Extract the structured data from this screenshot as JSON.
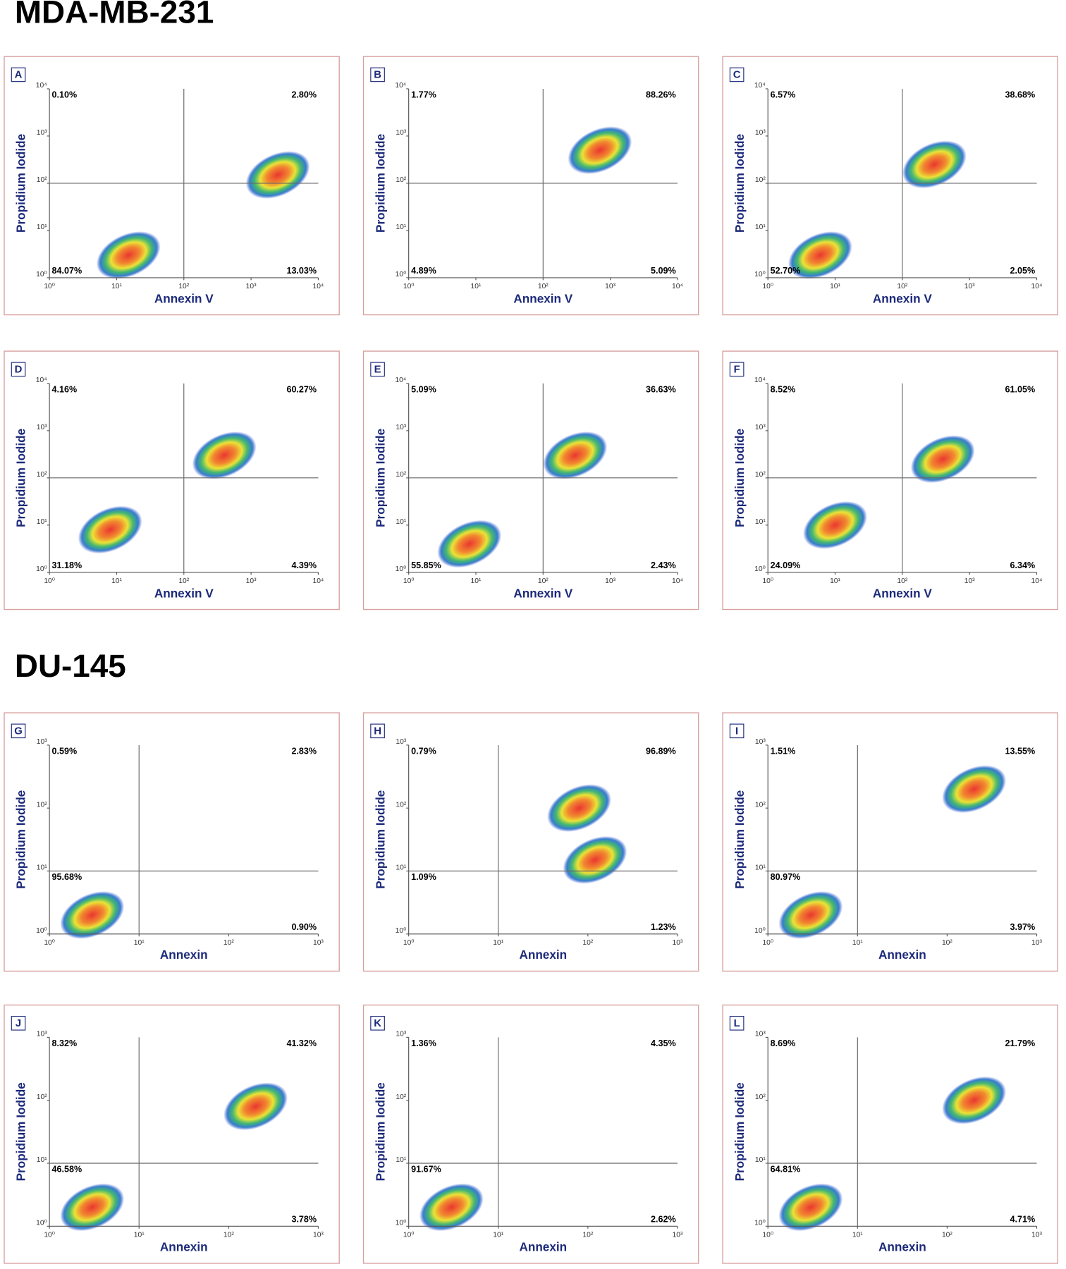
{
  "sections": [
    {
      "title": "MDA-MB-231"
    },
    {
      "title": "DU-145"
    }
  ],
  "chart_data": [
    {
      "type": "scatter",
      "title": "A",
      "xlabel": "Annexin V",
      "ylabel": "Propidium Iodide",
      "log": true,
      "xlim": [
        1,
        10000
      ],
      "ylim": [
        1,
        10000
      ],
      "xticks": [
        {
          "value": 1,
          "label": "10⁰"
        },
        {
          "value": 10,
          "label": "10¹"
        },
        {
          "value": 100,
          "label": "10²"
        },
        {
          "value": 1000,
          "label": "10³"
        },
        {
          "value": 10000,
          "label": "10⁴"
        }
      ],
      "yticks": [
        {
          "value": 1,
          "label": "10⁰"
        },
        {
          "value": 10,
          "label": "10¹"
        },
        {
          "value": 100,
          "label": "10²"
        },
        {
          "value": 1000,
          "label": "10³"
        },
        {
          "value": 10000,
          "label": "10⁴"
        }
      ],
      "xgate": 100,
      "ygate": 100,
      "x": [
        15,
        2500
      ],
      "y": [
        3,
        150
      ],
      "quadrants": {
        "values": [
          0.1,
          2.8,
          84.07,
          13.03
        ],
        "value_labels": [
          "0.10%",
          "2.80%",
          "84.07%",
          "13.03%"
        ]
      }
    },
    {
      "type": "scatter",
      "title": "B",
      "xlabel": "Annexin V",
      "ylabel": "Propidium Iodide",
      "log": true,
      "xlim": [
        1,
        10000
      ],
      "ylim": [
        1,
        10000
      ],
      "xticks": [
        {
          "value": 1,
          "label": "10⁰"
        },
        {
          "value": 10,
          "label": "10¹"
        },
        {
          "value": 100,
          "label": "10²"
        },
        {
          "value": 1000,
          "label": "10³"
        },
        {
          "value": 10000,
          "label": "10⁴"
        }
      ],
      "yticks": [
        {
          "value": 1,
          "label": "10⁰"
        },
        {
          "value": 10,
          "label": "10¹"
        },
        {
          "value": 100,
          "label": "10²"
        },
        {
          "value": 1000,
          "label": "10³"
        },
        {
          "value": 10000,
          "label": "10⁴"
        }
      ],
      "xgate": 100,
      "ygate": 100,
      "x": [
        700
      ],
      "y": [
        500
      ],
      "quadrants": {
        "values": [
          1.77,
          88.26,
          4.89,
          5.09
        ],
        "value_labels": [
          "1.77%",
          "88.26%",
          "4.89%",
          "5.09%"
        ]
      }
    },
    {
      "type": "scatter",
      "title": "C",
      "xlabel": "Annexin V",
      "ylabel": "Propidium Iodide",
      "log": true,
      "xlim": [
        1,
        10000
      ],
      "ylim": [
        1,
        10000
      ],
      "xticks": [
        {
          "value": 1,
          "label": "10⁰"
        },
        {
          "value": 10,
          "label": "10¹"
        },
        {
          "value": 100,
          "label": "10²"
        },
        {
          "value": 1000,
          "label": "10³"
        },
        {
          "value": 10000,
          "label": "10⁴"
        }
      ],
      "yticks": [
        {
          "value": 1,
          "label": "10⁰"
        },
        {
          "value": 10,
          "label": "10¹"
        },
        {
          "value": 100,
          "label": "10²"
        },
        {
          "value": 1000,
          "label": "10³"
        },
        {
          "value": 10000,
          "label": "10⁴"
        }
      ],
      "xgate": 100,
      "ygate": 100,
      "x": [
        6,
        300
      ],
      "y": [
        3,
        250
      ],
      "quadrants": {
        "values": [
          6.57,
          38.68,
          52.7,
          2.05
        ],
        "value_labels": [
          "6.57%",
          "38.68%",
          "52.70%",
          "2.05%"
        ]
      }
    },
    {
      "type": "scatter",
      "title": "D",
      "xlabel": "Annexin V",
      "ylabel": "Propidium Iodide",
      "log": true,
      "xlim": [
        1,
        10000
      ],
      "ylim": [
        1,
        10000
      ],
      "xticks": [
        {
          "value": 1,
          "label": "10⁰"
        },
        {
          "value": 10,
          "label": "10¹"
        },
        {
          "value": 100,
          "label": "10²"
        },
        {
          "value": 1000,
          "label": "10³"
        },
        {
          "value": 10000,
          "label": "10⁴"
        }
      ],
      "yticks": [
        {
          "value": 1,
          "label": "10⁰"
        },
        {
          "value": 10,
          "label": "10¹"
        },
        {
          "value": 100,
          "label": "10²"
        },
        {
          "value": 1000,
          "label": "10³"
        },
        {
          "value": 10000,
          "label": "10⁴"
        }
      ],
      "xgate": 100,
      "ygate": 100,
      "x": [
        8,
        400
      ],
      "y": [
        8,
        300
      ],
      "quadrants": {
        "values": [
          4.16,
          60.27,
          31.18,
          4.39
        ],
        "value_labels": [
          "4.16%",
          "60.27%",
          "31.18%",
          "4.39%"
        ]
      }
    },
    {
      "type": "scatter",
      "title": "E",
      "xlabel": "Annexin V",
      "ylabel": "Propidium Iodide",
      "log": true,
      "xlim": [
        1,
        10000
      ],
      "ylim": [
        1,
        10000
      ],
      "xticks": [
        {
          "value": 1,
          "label": "10⁰"
        },
        {
          "value": 10,
          "label": "10¹"
        },
        {
          "value": 100,
          "label": "10²"
        },
        {
          "value": 1000,
          "label": "10³"
        },
        {
          "value": 10000,
          "label": "10⁴"
        }
      ],
      "yticks": [
        {
          "value": 1,
          "label": "10⁰"
        },
        {
          "value": 10,
          "label": "10¹"
        },
        {
          "value": 100,
          "label": "10²"
        },
        {
          "value": 1000,
          "label": "10³"
        },
        {
          "value": 10000,
          "label": "10⁴"
        }
      ],
      "xgate": 100,
      "ygate": 100,
      "x": [
        8,
        300
      ],
      "y": [
        4,
        300
      ],
      "quadrants": {
        "values": [
          5.09,
          36.63,
          55.85,
          2.43
        ],
        "value_labels": [
          "5.09%",
          "36.63%",
          "55.85%",
          "2.43%"
        ]
      }
    },
    {
      "type": "scatter",
      "title": "F",
      "xlabel": "Annexin V",
      "ylabel": "Propidium Iodide",
      "log": true,
      "xlim": [
        1,
        10000
      ],
      "ylim": [
        1,
        10000
      ],
      "xticks": [
        {
          "value": 1,
          "label": "10⁰"
        },
        {
          "value": 10,
          "label": "10¹"
        },
        {
          "value": 100,
          "label": "10²"
        },
        {
          "value": 1000,
          "label": "10³"
        },
        {
          "value": 10000,
          "label": "10⁴"
        }
      ],
      "yticks": [
        {
          "value": 1,
          "label": "10⁰"
        },
        {
          "value": 10,
          "label": "10¹"
        },
        {
          "value": 100,
          "label": "10²"
        },
        {
          "value": 1000,
          "label": "10³"
        },
        {
          "value": 10000,
          "label": "10⁴"
        }
      ],
      "xgate": 100,
      "ygate": 100,
      "x": [
        10,
        400
      ],
      "y": [
        10,
        250
      ],
      "quadrants": {
        "values": [
          8.52,
          61.05,
          24.09,
          6.34
        ],
        "value_labels": [
          "8.52%",
          "61.05%",
          "24.09%",
          "6.34%"
        ]
      }
    },
    {
      "type": "scatter",
      "title": "G",
      "xlabel": "Annexin",
      "ylabel": "Propidium Iodide",
      "log": true,
      "xlim": [
        1,
        1000
      ],
      "ylim": [
        1,
        1000
      ],
      "xticks": [
        {
          "value": 1,
          "label": "10⁰"
        },
        {
          "value": 10,
          "label": "10¹"
        },
        {
          "value": 100,
          "label": "10²"
        },
        {
          "value": 1000,
          "label": "10³"
        }
      ],
      "yticks": [
        {
          "value": 1,
          "label": "10⁰"
        },
        {
          "value": 10,
          "label": "10¹"
        },
        {
          "value": 100,
          "label": "10²"
        },
        {
          "value": 1000,
          "label": "10³"
        }
      ],
      "xgate": 10,
      "ygate": 10,
      "x": [
        3
      ],
      "y": [
        2
      ],
      "quadrants": {
        "values": [
          0.59,
          2.83,
          95.68,
          0.9
        ],
        "value_labels": [
          "0.59%",
          "2.83%",
          "95.68%",
          "0.90%"
        ]
      }
    },
    {
      "type": "scatter",
      "title": "H",
      "xlabel": "Annexin",
      "ylabel": "Propidium Iodide",
      "log": true,
      "xlim": [
        1,
        1000
      ],
      "ylim": [
        1,
        1000
      ],
      "xticks": [
        {
          "value": 1,
          "label": "10⁰"
        },
        {
          "value": 10,
          "label": "10¹"
        },
        {
          "value": 100,
          "label": "10²"
        },
        {
          "value": 1000,
          "label": "10³"
        }
      ],
      "yticks": [
        {
          "value": 1,
          "label": "10⁰"
        },
        {
          "value": 10,
          "label": "10¹"
        },
        {
          "value": 100,
          "label": "10²"
        },
        {
          "value": 1000,
          "label": "10³"
        }
      ],
      "xgate": 10,
      "ygate": 10,
      "x": [
        80,
        120
      ],
      "y": [
        100,
        15
      ],
      "quadrants": {
        "values": [
          0.79,
          96.89,
          1.09,
          1.23
        ],
        "value_labels": [
          "0.79%",
          "96.89%",
          "1.09%",
          "1.23%"
        ]
      }
    },
    {
      "type": "scatter",
      "title": "I",
      "xlabel": "Annexin",
      "ylabel": "Propidium Iodide",
      "log": true,
      "xlim": [
        1,
        1000
      ],
      "ylim": [
        1,
        1000
      ],
      "xticks": [
        {
          "value": 1,
          "label": "10⁰"
        },
        {
          "value": 10,
          "label": "10¹"
        },
        {
          "value": 100,
          "label": "10²"
        },
        {
          "value": 1000,
          "label": "10³"
        }
      ],
      "yticks": [
        {
          "value": 1,
          "label": "10⁰"
        },
        {
          "value": 10,
          "label": "10¹"
        },
        {
          "value": 100,
          "label": "10²"
        },
        {
          "value": 1000,
          "label": "10³"
        }
      ],
      "xgate": 10,
      "ygate": 10,
      "x": [
        3,
        200
      ],
      "y": [
        2,
        200
      ],
      "quadrants": {
        "values": [
          1.51,
          13.55,
          80.97,
          3.97
        ],
        "value_labels": [
          "1.51%",
          "13.55%",
          "80.97%",
          "3.97%"
        ]
      }
    },
    {
      "type": "scatter",
      "title": "J",
      "xlabel": "Annexin",
      "ylabel": "Propidium Iodide",
      "log": true,
      "xlim": [
        1,
        1000
      ],
      "ylim": [
        1,
        1000
      ],
      "xticks": [
        {
          "value": 1,
          "label": "10⁰"
        },
        {
          "value": 10,
          "label": "10¹"
        },
        {
          "value": 100,
          "label": "10²"
        },
        {
          "value": 1000,
          "label": "10³"
        }
      ],
      "yticks": [
        {
          "value": 1,
          "label": "10⁰"
        },
        {
          "value": 10,
          "label": "10¹"
        },
        {
          "value": 100,
          "label": "10²"
        },
        {
          "value": 1000,
          "label": "10³"
        }
      ],
      "xgate": 10,
      "ygate": 10,
      "x": [
        3,
        200
      ],
      "y": [
        2,
        80
      ],
      "quadrants": {
        "values": [
          8.32,
          41.32,
          46.58,
          3.78
        ],
        "value_labels": [
          "8.32%",
          "41.32%",
          "46.58%",
          "3.78%"
        ]
      }
    },
    {
      "type": "scatter",
      "title": "K",
      "xlabel": "Annexin",
      "ylabel": "Propidium Iodide",
      "log": true,
      "xlim": [
        1,
        1000
      ],
      "ylim": [
        1,
        1000
      ],
      "xticks": [
        {
          "value": 1,
          "label": "10⁰"
        },
        {
          "value": 10,
          "label": "10¹"
        },
        {
          "value": 100,
          "label": "10²"
        },
        {
          "value": 1000,
          "label": "10³"
        }
      ],
      "yticks": [
        {
          "value": 1,
          "label": "10⁰"
        },
        {
          "value": 10,
          "label": "10¹"
        },
        {
          "value": 100,
          "label": "10²"
        },
        {
          "value": 1000,
          "label": "10³"
        }
      ],
      "xgate": 10,
      "ygate": 10,
      "x": [
        3
      ],
      "y": [
        2
      ],
      "quadrants": {
        "values": [
          1.36,
          4.35,
          91.67,
          2.62
        ],
        "value_labels": [
          "1.36%",
          "4.35%",
          "91.67%",
          "2.62%"
        ]
      }
    },
    {
      "type": "scatter",
      "title": "L",
      "xlabel": "Annexin",
      "ylabel": "Propidium Iodide",
      "log": true,
      "xlim": [
        1,
        1000
      ],
      "ylim": [
        1,
        1000
      ],
      "xticks": [
        {
          "value": 1,
          "label": "10⁰"
        },
        {
          "value": 10,
          "label": "10¹"
        },
        {
          "value": 100,
          "label": "10²"
        },
        {
          "value": 1000,
          "label": "10³"
        }
      ],
      "yticks": [
        {
          "value": 1,
          "label": "10⁰"
        },
        {
          "value": 10,
          "label": "10¹"
        },
        {
          "value": 100,
          "label": "10²"
        },
        {
          "value": 1000,
          "label": "10³"
        }
      ],
      "xgate": 10,
      "ygate": 10,
      "x": [
        3,
        200
      ],
      "y": [
        2,
        100
      ],
      "quadrants": {
        "values": [
          8.69,
          21.79,
          64.81,
          4.71
        ],
        "value_labels": [
          "8.69%",
          "21.79%",
          "64.81%",
          "4.71%"
        ]
      }
    }
  ]
}
